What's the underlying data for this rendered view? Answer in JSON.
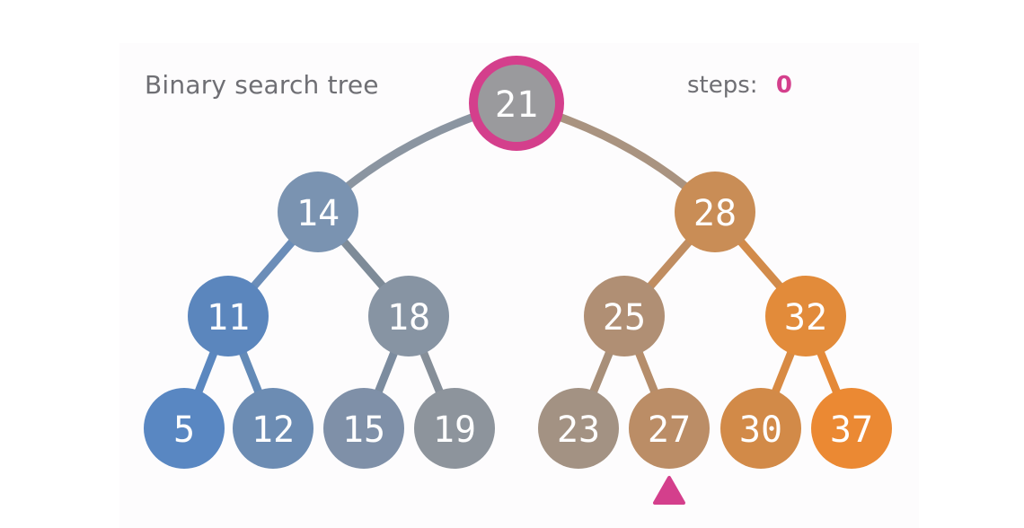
{
  "title": "Binary search tree",
  "steps": {
    "label": "steps:",
    "value": "0"
  },
  "accent_color": "#d43f8c",
  "current_node_id": "21",
  "pointer_under_node_id": "27",
  "nodes": [
    {
      "id": "21",
      "label": "21",
      "color": "#9a9a9d"
    },
    {
      "id": "14",
      "label": "14",
      "color": "#7a93b1"
    },
    {
      "id": "28",
      "label": "28",
      "color": "#c98d56"
    },
    {
      "id": "11",
      "label": "11",
      "color": "#5b86bd"
    },
    {
      "id": "18",
      "label": "18",
      "color": "#8794a3"
    },
    {
      "id": "25",
      "label": "25",
      "color": "#b08f74"
    },
    {
      "id": "32",
      "label": "32",
      "color": "#e28b3a"
    },
    {
      "id": "5",
      "label": "5",
      "color": "#5987c2"
    },
    {
      "id": "12",
      "label": "12",
      "color": "#6c8cb3"
    },
    {
      "id": "15",
      "label": "15",
      "color": "#7f90a8"
    },
    {
      "id": "19",
      "label": "19",
      "color": "#8d949c"
    },
    {
      "id": "23",
      "label": "23",
      "color": "#a39283"
    },
    {
      "id": "27",
      "label": "27",
      "color": "#bb8d66"
    },
    {
      "id": "30",
      "label": "30",
      "color": "#d28a48"
    },
    {
      "id": "37",
      "label": "37",
      "color": "#eb8933"
    }
  ],
  "edges": [
    {
      "from": "21",
      "to": "14",
      "color": "#8b95a1"
    },
    {
      "from": "21",
      "to": "28",
      "color": "#a99380"
    },
    {
      "from": "14",
      "to": "11",
      "color": "#6b8db8"
    },
    {
      "from": "14",
      "to": "18",
      "color": "#7e8b98"
    },
    {
      "from": "28",
      "to": "25",
      "color": "#c08d61"
    },
    {
      "from": "28",
      "to": "32",
      "color": "#d28b4a"
    },
    {
      "from": "11",
      "to": "5",
      "color": "#5b87bf"
    },
    {
      "from": "11",
      "to": "12",
      "color": "#638ab7"
    },
    {
      "from": "18",
      "to": "15",
      "color": "#7c8c9f"
    },
    {
      "from": "18",
      "to": "19",
      "color": "#858e98"
    },
    {
      "from": "25",
      "to": "23",
      "color": "#a88f79"
    },
    {
      "from": "25",
      "to": "27",
      "color": "#b58d6b"
    },
    {
      "from": "32",
      "to": "30",
      "color": "#d88a43"
    },
    {
      "from": "32",
      "to": "37",
      "color": "#e48938"
    }
  ]
}
